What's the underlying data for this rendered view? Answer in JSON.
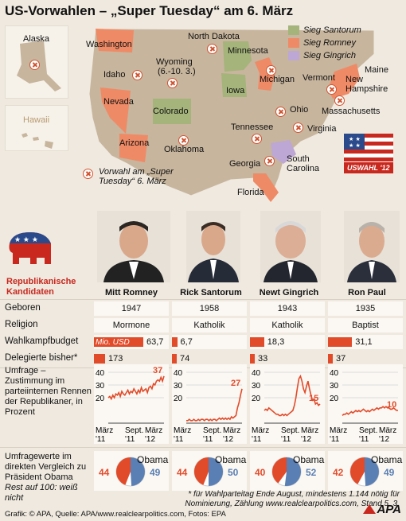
{
  "title": "US-Vorwahlen – „Super Tuesday“ am 6. März",
  "colors": {
    "santorum": "#a4b47a",
    "romney": "#ef8a66",
    "gingrich": "#bda7d4",
    "land": "#c7b59d",
    "accent": "#e24b2a",
    "obama": "#5a7fb4"
  },
  "map": {
    "insets": {
      "alaska": "Alaska",
      "hawaii": "Hawaii"
    },
    "states": {
      "washington": "Washington",
      "idaho": "Idaho",
      "nevada": "Nevada",
      "arizona": "Arizona",
      "wyoming": "Wyoming",
      "wyoming_note": "(6.-10. 3.)",
      "colorado": "Colorado",
      "north_dakota": "North Dakota",
      "minnesota": "Minnesota",
      "iowa": "Iowa",
      "oklahoma": "Oklahoma",
      "michigan": "Michigan",
      "ohio": "Ohio",
      "tennessee": "Tennessee",
      "georgia": "Georgia",
      "florida": "Florida",
      "vermont": "Vermont",
      "maine": "Maine",
      "new_hampshire": "New Hampshire",
      "massachusetts": "Massachusetts",
      "virginia": "Virginia",
      "south_carolina": "South Carolina"
    },
    "vorwahl_note": "Vorwahl am „Super Tuesday“ 6. März"
  },
  "legend": {
    "santorum": "Sieg Santorum",
    "romney": "Sieg Romney",
    "gingrich": "Sieg Gingrich"
  },
  "badge": {
    "text": "USWAHL '12"
  },
  "gop_label": "Republikanische Kandidaten",
  "rows": {
    "born": "Geboren",
    "religion": "Religion",
    "budget": "Wahlkampfbudget",
    "delegates": "Delegierte bisher*",
    "poll": "Umfrage – Zustimmung im parteiinternen Rennen der Republikaner, in Prozent",
    "compare": "Umfragewerte im direkten Vergleich zu Präsident Obama",
    "compare_note": "Rest auf 100: weiß nicht"
  },
  "budget_unit": "Mio. USD",
  "axis": {
    "ytick_40": "40",
    "ytick_30": "30",
    "ytick_20": "20",
    "x_start": "März '11",
    "x_mid": "Sept. '11",
    "x_end": "März '12"
  },
  "obama_label": "Obama",
  "candidates": [
    {
      "name": "Mitt Romney",
      "born": "1947",
      "religion": "Mormone",
      "budget": 63.7,
      "budget_label": "63,7",
      "delegates": 173,
      "delegates_label": "173",
      "poll_end": "37",
      "poll": [
        20,
        21,
        19,
        22,
        20,
        23,
        22,
        24,
        21,
        25,
        23,
        22,
        24,
        26,
        23,
        25,
        24,
        27,
        25,
        23,
        26,
        24,
        28,
        25,
        26,
        27,
        24,
        28,
        29,
        27,
        31,
        30,
        33,
        34,
        33,
        36,
        33,
        37
      ],
      "vs_rep": 44,
      "vs_obama": 49,
      "vs_rep_label": "44",
      "vs_obama_label": "49"
    },
    {
      "name": "Rick Santorum",
      "born": "1958",
      "religion": "Katholik",
      "budget": 6.7,
      "budget_label": "6,7",
      "delegates": 74,
      "delegates_label": "74",
      "poll_end": "27",
      "poll": [
        2,
        2,
        3,
        2,
        2,
        3,
        2,
        2,
        3,
        2,
        3,
        3,
        2,
        3,
        3,
        2,
        3,
        2,
        3,
        3,
        2,
        3,
        4,
        3,
        4,
        3,
        4,
        3,
        4,
        3,
        5,
        4,
        5,
        6,
        12,
        16,
        22,
        27
      ],
      "vs_rep": 44,
      "vs_obama": 50,
      "vs_rep_label": "44",
      "vs_obama_label": "50"
    },
    {
      "name": "Newt Gingrich",
      "born": "1943",
      "religion": "Katholik",
      "budget": 18.3,
      "budget_label": "18,3",
      "delegates": 33,
      "delegates_label": "33",
      "poll_end": "15",
      "poll": [
        10,
        11,
        10,
        12,
        11,
        10,
        9,
        8,
        7,
        7,
        6,
        6,
        7,
        6,
        7,
        6,
        7,
        8,
        9,
        10,
        14,
        20,
        28,
        35,
        37,
        33,
        27,
        24,
        29,
        33,
        27,
        22,
        18,
        19,
        15,
        16,
        14,
        15
      ],
      "vs_rep": 40,
      "vs_obama": 52,
      "vs_rep_label": "40",
      "vs_obama_label": "52"
    },
    {
      "name": "Ron Paul",
      "born": "1935",
      "religion": "Baptist",
      "budget": 31.1,
      "budget_label": "31,1",
      "delegates": 37,
      "delegates_label": "37",
      "poll_end": "10",
      "poll": [
        6,
        7,
        7,
        8,
        7,
        8,
        9,
        8,
        9,
        10,
        9,
        10,
        9,
        10,
        11,
        10,
        9,
        10,
        9,
        10,
        11,
        10,
        11,
        12,
        11,
        12,
        12,
        13,
        12,
        13,
        12,
        12,
        11,
        11,
        12,
        11,
        10,
        10
      ],
      "vs_rep": 42,
      "vs_obama": 49,
      "vs_rep_label": "42",
      "vs_obama_label": "49"
    }
  ],
  "footnote": "* für Wahlparteitag Ende August, mindestens 1.144 nötig für Nominierung, Zählung www.realclearpolitics.com, Stand 5. 3.",
  "credits": "Grafik: © APA, Quelle: APA/www.realclearpolitics.com, Fotos: EPA",
  "apa_logo": "APA"
}
